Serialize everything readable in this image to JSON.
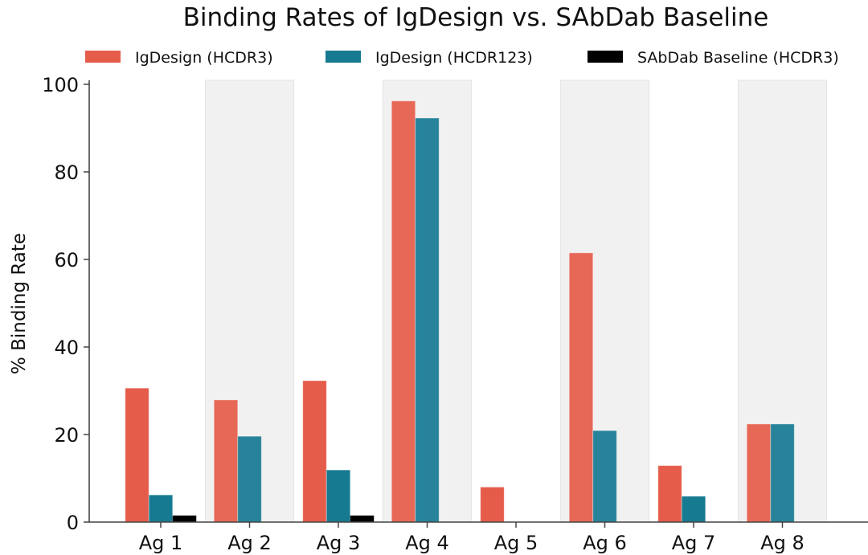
{
  "chart_data": {
    "type": "bar",
    "title": "Binding Rates of IgDesign vs. SAbDab Baseline",
    "xlabel": "",
    "ylabel": "% Binding Rate",
    "ylim": [
      0,
      100
    ],
    "yticks": [
      0,
      20,
      40,
      60,
      80,
      100
    ],
    "grid": false,
    "legend_position": "top",
    "categories": [
      "Ag 1",
      "Ag 2",
      "Ag 3",
      "Ag 4",
      "Ag 5",
      "Ag 6",
      "Ag 7",
      "Ag 8"
    ],
    "shaded_categories": [
      "Ag 2",
      "Ag 4",
      "Ag 6",
      "Ag 8"
    ],
    "series": [
      {
        "name": "IgDesign (HCDR3)",
        "color": "#E65C4A",
        "values": [
          30.6,
          27.9,
          32.3,
          96.2,
          8.0,
          61.5,
          12.9,
          22.4
        ]
      },
      {
        "name": "IgDesign (HCDR123)",
        "color": "#167A91",
        "values": [
          6.2,
          19.6,
          11.9,
          92.3,
          0,
          20.9,
          5.9,
          22.4
        ]
      },
      {
        "name": "SAbDab Baseline (HCDR3)",
        "color": "#000000",
        "values": [
          1.5,
          0,
          1.5,
          0,
          0,
          0,
          0,
          0
        ]
      }
    ]
  }
}
